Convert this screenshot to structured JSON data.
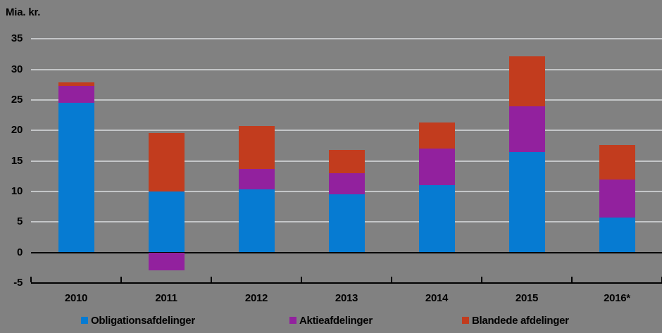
{
  "chart_data": {
    "type": "bar",
    "stacked": true,
    "title": "",
    "ylabel": "Mia. kr.",
    "xlabel": "",
    "categories": [
      "2010",
      "2011",
      "2012",
      "2013",
      "2014",
      "2015",
      "2016*"
    ],
    "series": [
      {
        "name": "Obligationsafdelinger",
        "color": "#067bd2",
        "values": [
          24.5,
          10.0,
          10.3,
          9.5,
          11.0,
          16.5,
          5.7
        ]
      },
      {
        "name": "Aktieafdelinger",
        "color": "#92219e",
        "values": [
          2.8,
          -2.9,
          3.4,
          3.5,
          6.0,
          7.5,
          6.2
        ]
      },
      {
        "name": "Blandede afdelinger",
        "color": "#c23c1e",
        "values": [
          0.6,
          9.6,
          7.0,
          3.8,
          4.3,
          8.2,
          5.7
        ]
      }
    ],
    "ylim": [
      -5,
      35
    ],
    "yticks": [
      -5,
      0,
      5,
      10,
      15,
      20,
      25,
      30,
      35
    ],
    "grid": true,
    "legend_position": "bottom",
    "colors": {
      "background": "#818181",
      "gridline": "#c4c6c8",
      "axis": "#000000",
      "text": "#000000"
    }
  }
}
